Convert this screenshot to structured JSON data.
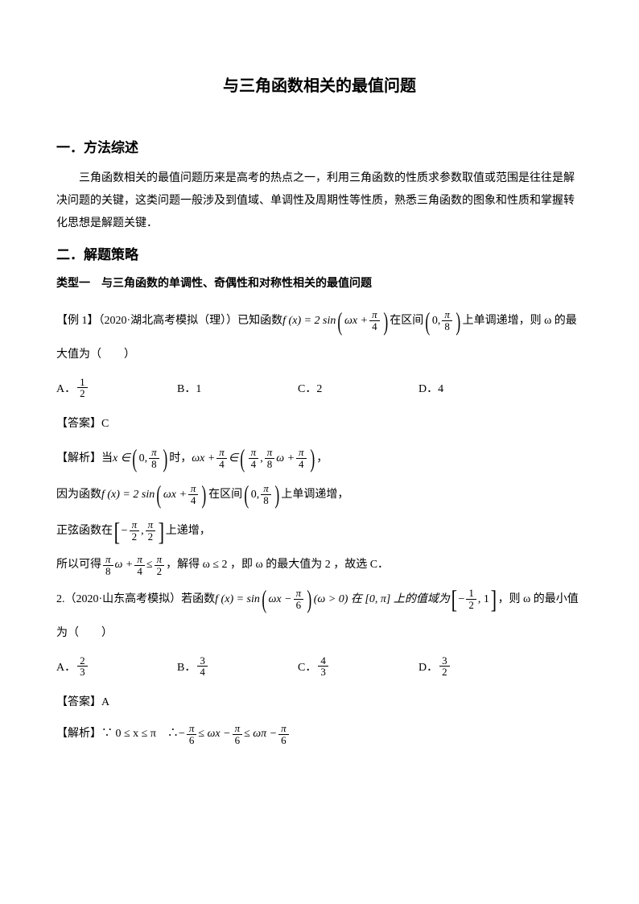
{
  "title": "与三角函数相关的最值问题",
  "s1": {
    "heading": "一．方法综述",
    "para": "三角函数相关的最值问题历来是高考的热点之一，利用三角函数的性质求参数取值或范围是往往是解决问题的关键，这类问题一般涉及到值域、单调性及周期性等性质，熟悉三角函数的图象和性质和掌握转化思想是解题关键．"
  },
  "s2": {
    "heading": "二．解题策略",
    "subtype": "类型一　与三角函数的单调性、奇偶性和对称性相关的最值问题"
  },
  "ex1": {
    "prefix": "【例 1】（2020·湖北高考模拟（理））已知函数 ",
    "func": "f (x) = 2 sin",
    "interval_pre": "在区间",
    "tail": "上单调递增，则 ω 的最",
    "tail2": "大值为（　　）",
    "optA": "A．",
    "optB": "B．1",
    "optC": "C．2",
    "optD": "D．4",
    "ans": "【答案】C",
    "sol1_pre": "【解析】当 ",
    "sol1_mid": " 时，",
    "sol2_pre": "因为函数 ",
    "sol2_func": "f (x) = 2 sin",
    "sol2_mid": "在区间",
    "sol2_tail": "上单调递增，",
    "sol3_pre": "正弦函数在 ",
    "sol3_tail": " 上递增，",
    "sol4_pre": "所以可得 ",
    "sol4_mid": "，解得 ω ≤ 2 ，即 ω 的最大值为 2 ，故选 C．"
  },
  "ex2": {
    "prefix": "2.（2020·山东高考模拟）若函数 ",
    "func": "f (x) = sin",
    "cond": "(ω > 0) 在 [0, π] 上的值域为 ",
    "tail": "，则 ω 的最小值",
    "tail2": "为（　　）",
    "optA": "A．",
    "optB": "B．",
    "optC": "C．",
    "optD": "D．",
    "ans": "【答案】A",
    "sol_pre": "【解析】∵ 0 ≤ x ≤ π　∴ "
  },
  "sym": {
    "pi": "π",
    "omega": "ω",
    "x": "x",
    "in": "∈",
    "le": "≤",
    "minus": "−",
    "q": "∵",
    "t": "∴"
  },
  "colors": {
    "text": "#000000",
    "bg": "#ffffff"
  }
}
